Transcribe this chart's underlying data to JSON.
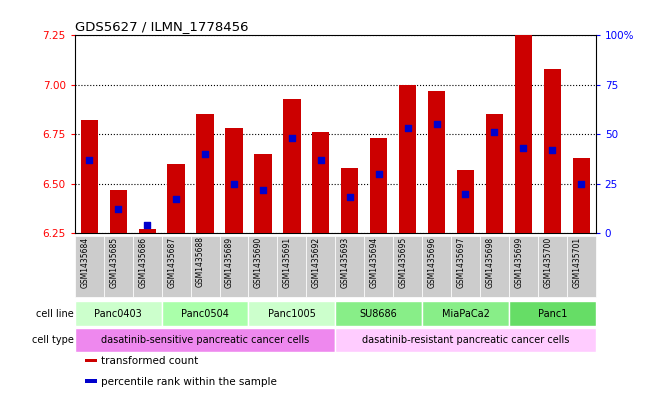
{
  "title": "GDS5627 / ILMN_1778456",
  "samples": [
    "GSM1435684",
    "GSM1435685",
    "GSM1435686",
    "GSM1435687",
    "GSM1435688",
    "GSM1435689",
    "GSM1435690",
    "GSM1435691",
    "GSM1435692",
    "GSM1435693",
    "GSM1435694",
    "GSM1435695",
    "GSM1435696",
    "GSM1435697",
    "GSM1435698",
    "GSM1435699",
    "GSM1435700",
    "GSM1435701"
  ],
  "bar_heights": [
    6.82,
    6.47,
    6.27,
    6.6,
    6.85,
    6.78,
    6.65,
    6.93,
    6.76,
    6.58,
    6.73,
    7.0,
    6.97,
    6.57,
    6.85,
    7.25,
    7.08,
    6.63
  ],
  "blue_dot_y": [
    6.62,
    6.37,
    6.29,
    6.42,
    6.65,
    6.5,
    6.47,
    6.73,
    6.62,
    6.43,
    6.55,
    6.78,
    6.8,
    6.45,
    6.76,
    6.68,
    6.67,
    6.5
  ],
  "bar_color": "#cc0000",
  "dot_color": "#0000cc",
  "ylim_left": [
    6.25,
    7.25
  ],
  "yticks_left": [
    6.25,
    6.5,
    6.75,
    7.0,
    7.25
  ],
  "ylim_right": [
    0,
    100
  ],
  "yticks_right": [
    0,
    25,
    50,
    75,
    100
  ],
  "ytick_labels_right": [
    "0",
    "25",
    "50",
    "75",
    "100%"
  ],
  "cell_lines": [
    {
      "label": "Panc0403",
      "start": 0,
      "end": 3,
      "color": "#ccffcc"
    },
    {
      "label": "Panc0504",
      "start": 3,
      "end": 6,
      "color": "#aaffaa"
    },
    {
      "label": "Panc1005",
      "start": 6,
      "end": 9,
      "color": "#ccffcc"
    },
    {
      "label": "SU8686",
      "start": 9,
      "end": 12,
      "color": "#88ee88"
    },
    {
      "label": "MiaPaCa2",
      "start": 12,
      "end": 15,
      "color": "#88ee88"
    },
    {
      "label": "Panc1",
      "start": 15,
      "end": 18,
      "color": "#66dd66"
    }
  ],
  "cell_types": [
    {
      "label": "dasatinib-sensitive pancreatic cancer cells",
      "start": 0,
      "end": 9,
      "color": "#ee88ee"
    },
    {
      "label": "dasatinib-resistant pancreatic cancer cells",
      "start": 9,
      "end": 18,
      "color": "#ffccff"
    }
  ],
  "legend_items": [
    {
      "color": "#cc0000",
      "label": "transformed count"
    },
    {
      "color": "#0000cc",
      "label": "percentile rank within the sample"
    }
  ],
  "bar_width": 0.6,
  "background_color": "#ffffff",
  "plot_bg_color": "#ffffff",
  "tick_bg_color": "#cccccc",
  "grid_color": "#000000"
}
